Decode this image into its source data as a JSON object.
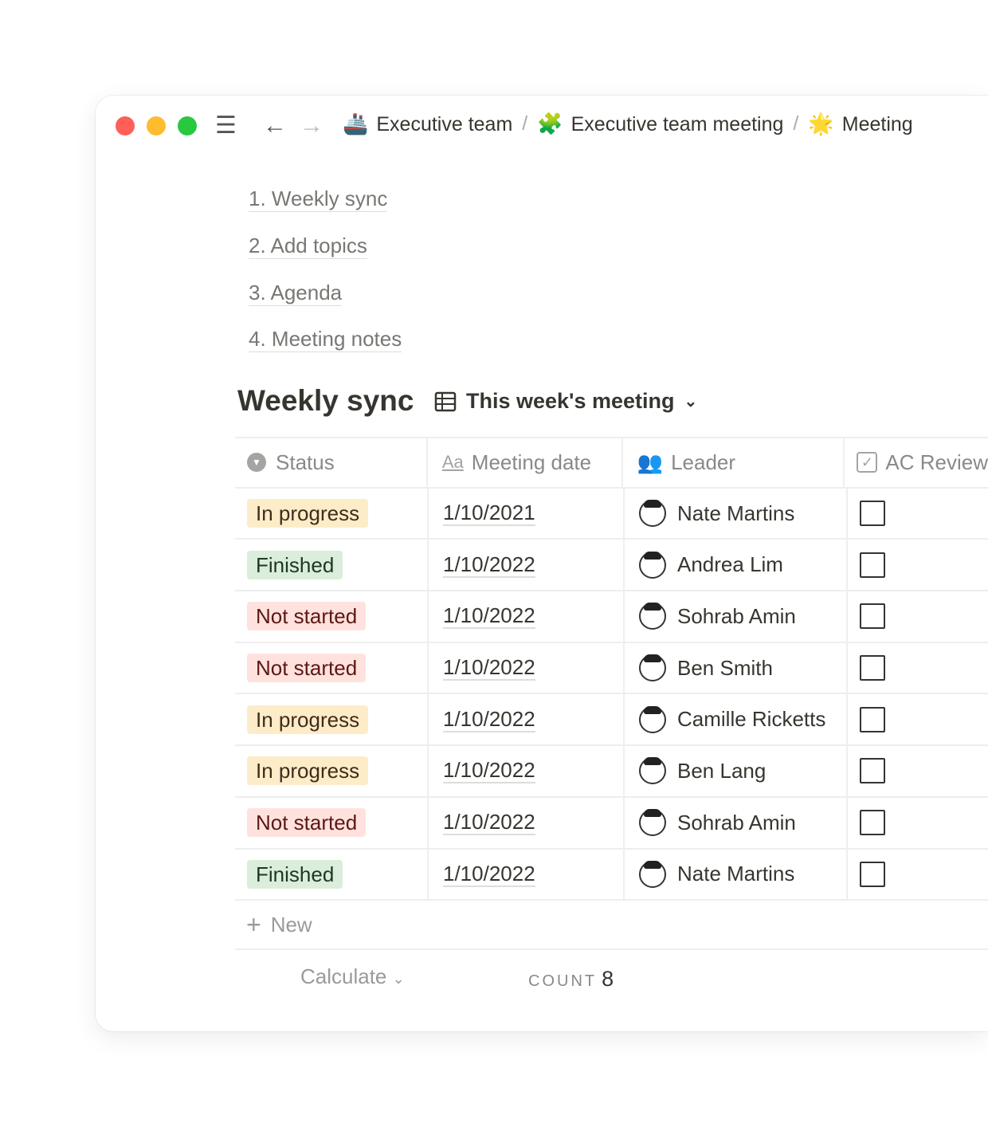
{
  "breadcrumb": [
    {
      "emoji": "🚢",
      "label": "Executive team"
    },
    {
      "emoji": "🧩",
      "label": "Executive team meeting"
    },
    {
      "emoji": "🌟",
      "label": "Meeting"
    }
  ],
  "toc": [
    "1. Weekly sync",
    "2. Add topics",
    "3. Agenda",
    "4. Meeting notes"
  ],
  "section_title": "Weekly sync",
  "view": {
    "icon": "table-icon",
    "label": "This week's meeting"
  },
  "columns": [
    {
      "icon": "status-icon",
      "label": "Status"
    },
    {
      "icon": "text-icon",
      "label": "Meeting date",
      "glyph": "Aa"
    },
    {
      "icon": "person-icon",
      "label": "Leader"
    },
    {
      "icon": "checkbox-icon",
      "label": "AC Review"
    }
  ],
  "rows": [
    {
      "status": "In progress",
      "date": "1/10/2021",
      "leader": "Nate Martins",
      "checked": false
    },
    {
      "status": "Finished",
      "date": "1/10/2022",
      "leader": "Andrea Lim",
      "checked": false
    },
    {
      "status": "Not started",
      "date": "1/10/2022",
      "leader": "Sohrab Amin",
      "checked": false
    },
    {
      "status": "Not started",
      "date": "1/10/2022",
      "leader": "Ben Smith",
      "checked": false
    },
    {
      "status": "In progress",
      "date": "1/10/2022",
      "leader": "Camille Ricketts",
      "checked": false
    },
    {
      "status": "In progress",
      "date": "1/10/2022",
      "leader": "Ben Lang",
      "checked": false
    },
    {
      "status": "Not started",
      "date": "1/10/2022",
      "leader": "Sohrab Amin",
      "checked": false
    },
    {
      "status": "Finished",
      "date": "1/10/2022",
      "leader": "Nate Martins",
      "checked": false
    }
  ],
  "new_label": "New",
  "footer": {
    "calculate": "Calculate",
    "count_label": "COUNT",
    "count_value": "8"
  },
  "status_colors": {
    "In progress": {
      "bg": "#fdecc8",
      "fg": "#402c1b"
    },
    "Finished": {
      "bg": "#dbeddb",
      "fg": "#1c3829"
    },
    "Not started": {
      "bg": "#ffe2dd",
      "fg": "#5d1715"
    }
  }
}
